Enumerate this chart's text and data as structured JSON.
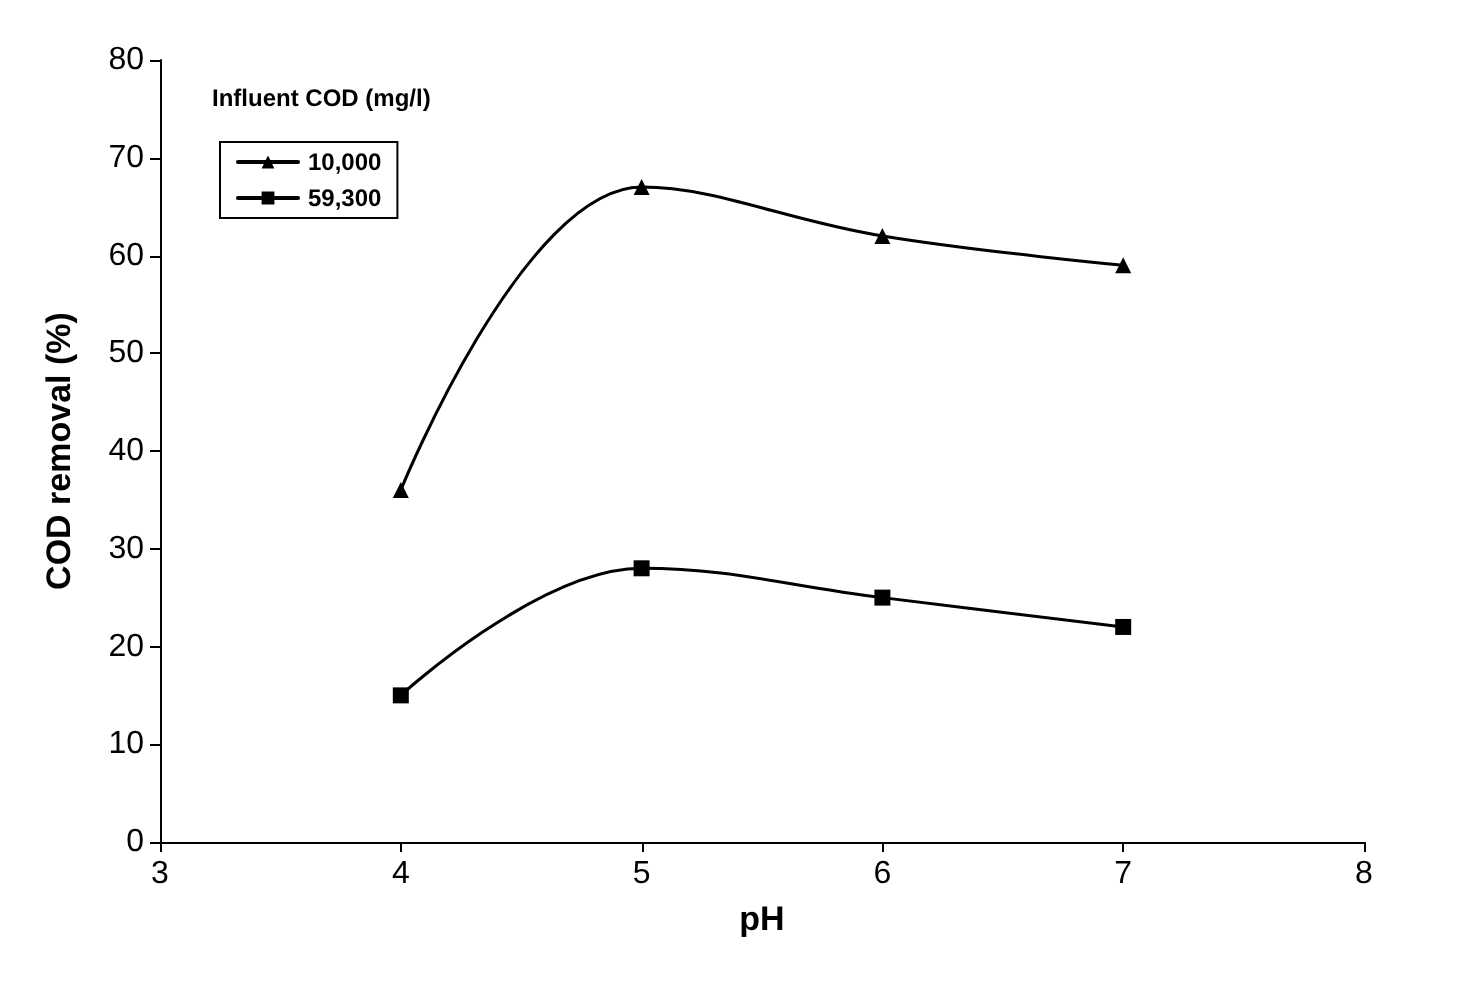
{
  "chart_data": {
    "type": "line",
    "xlabel": "pH",
    "ylabel": "COD removal (%)",
    "legend_title": "Influent COD (mg/l)",
    "legend": "top left",
    "grid": false,
    "line_style": "solid",
    "xlim": [
      3,
      8
    ],
    "xticks": [
      3,
      4,
      5,
      6,
      7,
      8
    ],
    "ylim": [
      0,
      80
    ],
    "yticks": [
      0,
      10,
      20,
      30,
      40,
      50,
      60,
      70,
      80
    ],
    "series": [
      {
        "name": "10,000",
        "color": "#000000",
        "marker": "triangle",
        "x": [
          4,
          5,
          6,
          7
        ],
        "values": [
          36,
          67,
          62,
          59
        ]
      },
      {
        "name": "59,300",
        "color": "#000000",
        "marker": "square",
        "x": [
          4,
          5,
          6,
          7
        ],
        "values": [
          15,
          28,
          25,
          22
        ]
      }
    ]
  }
}
